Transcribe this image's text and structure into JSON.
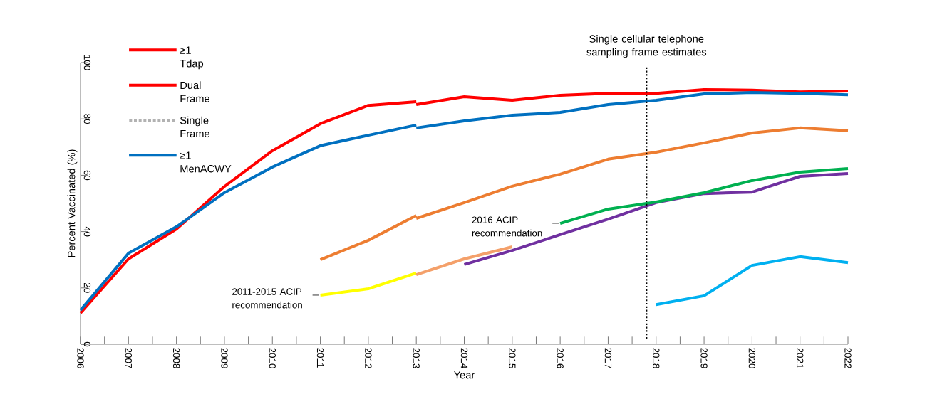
{
  "chart_data": {
    "type": "line",
    "xlabel": "Year",
    "ylabel": "Percent Vaccinated (%)",
    "xlim": [
      2006,
      2022
    ],
    "ylim": [
      0,
      100
    ],
    "xticks": [
      2006,
      2007,
      2008,
      2009,
      2010,
      2011,
      2012,
      2013,
      2014,
      2015,
      2016,
      2017,
      2018,
      2019,
      2020,
      2021,
      2022
    ],
    "yticks": [
      0,
      20,
      40,
      60,
      80,
      100
    ],
    "legend": "top left",
    "marker": "none",
    "series": [
      {
        "name": "≥1 Tdap",
        "color": "#ff0000",
        "x": [
          2013,
          2014,
          2015,
          2016,
          2017,
          2018,
          2019,
          2020,
          2021,
          2022
        ],
        "values": [
          85.1,
          87.9,
          86.6,
          88.4,
          89.1,
          89.1,
          90.4,
          90.2,
          89.6,
          89.9
        ]
      },
      {
        "name": "Dual Frame",
        "color": "#ff0000",
        "x": [
          2006,
          2007,
          2008,
          2009,
          2010,
          2011,
          2012,
          2013
        ],
        "values": [
          11.1,
          30.3,
          40.9,
          56.0,
          68.7,
          78.3,
          84.8,
          86.1
        ]
      },
      {
        "name": "≥1 MenACWY",
        "color": "#0070c0",
        "x": [
          2013,
          2014,
          2015,
          2016,
          2017,
          2018,
          2019,
          2020,
          2021,
          2022
        ],
        "values": [
          76.8,
          79.3,
          81.3,
          82.3,
          85.1,
          86.6,
          88.9,
          89.4,
          89.1,
          88.6
        ]
      },
      {
        "color": "#0070c0",
        "x": [
          2006,
          2007,
          2008,
          2009,
          2010,
          2011,
          2012,
          2013
        ],
        "values": [
          12.1,
          32.3,
          41.7,
          53.8,
          62.9,
          70.5,
          74.2,
          77.8
        ]
      },
      {
        "color": "#ed7d31",
        "x": [
          2011,
          2012,
          2013
        ],
        "values": [
          30.0,
          36.9,
          45.7
        ]
      },
      {
        "color": "#ed7d31",
        "x": [
          2013,
          2014,
          2015,
          2016,
          2017,
          2018,
          2019,
          2020,
          2021,
          2022
        ],
        "values": [
          44.7,
          50.3,
          56.1,
          60.4,
          65.7,
          68.2,
          71.5,
          75.0,
          76.8,
          75.8
        ]
      },
      {
        "color": "#ffff00",
        "x": [
          2011,
          2012,
          2013
        ],
        "values": [
          17.4,
          19.7,
          25.3
        ]
      },
      {
        "color": "#f4a06a",
        "x": [
          2013,
          2014,
          2015
        ],
        "values": [
          24.7,
          30.3,
          34.6
        ]
      },
      {
        "color": "#7030a0",
        "x": [
          2014,
          2015,
          2016,
          2017,
          2018,
          2019,
          2020,
          2021,
          2022
        ],
        "values": [
          28.3,
          33.3,
          38.9,
          44.4,
          50.3,
          53.5,
          54.0,
          59.6,
          60.6
        ]
      },
      {
        "color": "#00b050",
        "x": [
          2016,
          2017,
          2018,
          2019,
          2020,
          2021,
          2022
        ],
        "values": [
          42.9,
          48.0,
          50.5,
          53.8,
          58.1,
          61.1,
          62.4
        ]
      },
      {
        "color": "#00b0f0",
        "x": [
          2018,
          2019,
          2020,
          2021,
          2022
        ],
        "values": [
          14.1,
          17.2,
          28.0,
          31.1,
          29.0
        ]
      }
    ],
    "ref_lines": [
      {
        "axis": "x",
        "value": 2017.8,
        "label": "Single cellular telephone sampling frame estimates",
        "color": "#000000",
        "line_style": "dotted"
      }
    ],
    "annotations": [
      {
        "text": "2011-2015 ACIP recommendation",
        "x": 2011,
        "y": 17.4
      },
      {
        "text": "2016 ACIP recommendation",
        "x": 2016,
        "y": 42.9
      },
      "Single Frame"
    ]
  }
}
